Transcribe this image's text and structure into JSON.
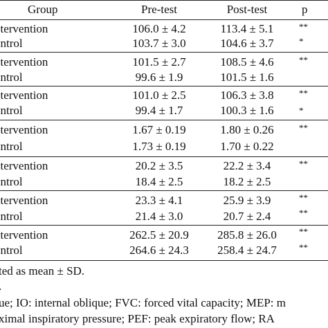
{
  "table": {
    "headers": {
      "group": "Group",
      "pre": "Pre-test",
      "post": "Post-test",
      "p": "p"
    },
    "rows": [
      {
        "group": "ntervention",
        "pre": "106.0 ± 4.2",
        "post": "113.4 ± 5.1",
        "p": "**"
      },
      {
        "group": "ontrol",
        "pre": "103.7 ± 3.0",
        "post": "104.6 ± 3.7",
        "p": "*"
      },
      {
        "group": "ntervention",
        "pre": "101.5 ± 2.7",
        "post": "108.5 ± 4.6",
        "p": "**"
      },
      {
        "group": "ontrol",
        "pre": "99.6 ± 1.9",
        "post": "101.5 ± 1.6",
        "p": ""
      },
      {
        "group": "ntervention",
        "pre": "101.0 ± 2.5",
        "post": "106.3 ± 3.8",
        "p": "**"
      },
      {
        "group": "ontrol",
        "pre": "99.4 ± 1.7",
        "post": "100.3 ± 1.6",
        "p": "*"
      },
      {
        "group": "ntervention",
        "pre": "1.67 ± 0.19",
        "post": "1.80 ± 0.26",
        "p": "**"
      },
      {
        "group": "ontrol",
        "pre": "1.73 ± 0.19",
        "post": "1.70 ± 0.22",
        "p": ""
      },
      {
        "group": "ntervention",
        "pre": "20.2 ± 3.5",
        "post": "22.2 ± 3.4",
        "p": "**"
      },
      {
        "group": "ontrol",
        "pre": "18.4 ± 2.5",
        "post": "18.2 ± 2.5",
        "p": ""
      },
      {
        "group": "ntervention",
        "pre": "23.3 ± 4.1",
        "post": "25.9 ± 3.9",
        "p": "**"
      },
      {
        "group": "ontrol",
        "pre": "21.4 ± 3.0",
        "post": "20.7 ± 2.4",
        "p": "**"
      },
      {
        "group": "ntervention",
        "pre": "262.5 ± 20.9",
        "post": "285.8 ± 26.0",
        "p": "**"
      },
      {
        "group": "ontrol",
        "pre": "264.6 ± 24.3",
        "post": "258.4 ± 24.7",
        "p": "**"
      }
    ]
  },
  "notes": {
    "line1": "ted as mean ± SD.",
    "line2": ".",
    "line3": "ue; IO: internal oblique; FVC: forced vital capacity; MEP: m",
    "line4": "ximal inspiratory pressure; PEF: peak expiratory flow; RA"
  }
}
